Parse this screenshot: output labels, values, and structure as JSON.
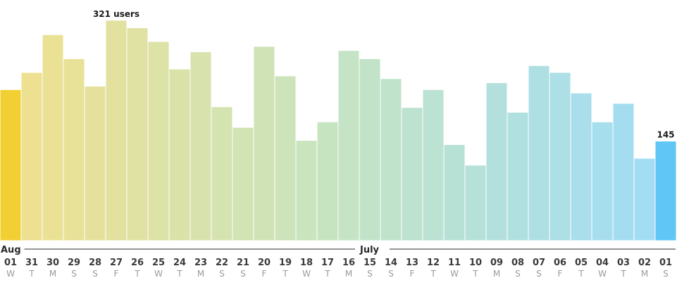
{
  "chart_data": {
    "type": "bar",
    "days": [
      "01",
      "31",
      "30",
      "29",
      "28",
      "27",
      "26",
      "25",
      "24",
      "23",
      "22",
      "21",
      "20",
      "19",
      "18",
      "17",
      "16",
      "15",
      "14",
      "13",
      "12",
      "11",
      "10",
      "09",
      "08",
      "07",
      "06",
      "05",
      "04",
      "03",
      "02",
      "01"
    ],
    "weekdays": [
      "W",
      "T",
      "M",
      "S",
      "S",
      "F",
      "T",
      "W",
      "T",
      "M",
      "S",
      "S",
      "F",
      "T",
      "W",
      "T",
      "M",
      "S",
      "S",
      "F",
      "T",
      "W",
      "T",
      "M",
      "S",
      "S",
      "F",
      "T",
      "W",
      "T",
      "M",
      "S"
    ],
    "values": [
      220,
      245,
      300,
      265,
      225,
      321,
      310,
      290,
      250,
      275,
      195,
      165,
      283,
      240,
      146,
      173,
      277,
      265,
      236,
      194,
      220,
      140,
      110,
      230,
      187,
      255,
      245,
      215,
      173,
      200,
      120,
      145
    ],
    "months": [
      {
        "label": "Aug",
        "start": 0
      },
      {
        "label": "July",
        "start": 17
      }
    ],
    "annotations": [
      {
        "index": 5,
        "text": "321 users"
      },
      {
        "index": 31,
        "text": "145"
      }
    ],
    "highlight_indices": [
      0,
      31
    ],
    "ylim": [
      0,
      330
    ],
    "colors": {
      "gradient_start": "#f0e08e",
      "gradient_mid": "#c6e4c3",
      "gradient_end": "#9fdcf7",
      "highlight_start": "#f2cf32",
      "highlight_end": "#5fc6f5",
      "axis_line": "#2a2a2a"
    }
  }
}
